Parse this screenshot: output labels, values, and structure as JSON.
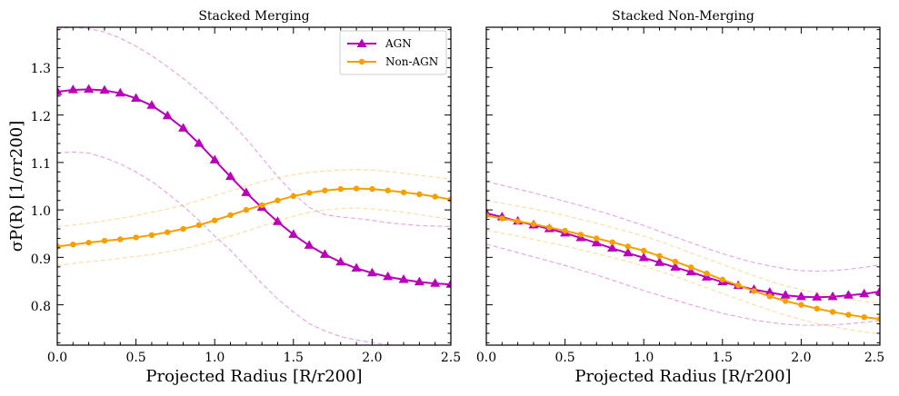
{
  "chart_data": {
    "type": "line",
    "ylabel": "σP(R) [1/σr200]",
    "ylim": [
      0.715,
      1.385
    ],
    "yticks": [
      0.8,
      0.9,
      1.0,
      1.1,
      1.2,
      1.3
    ],
    "ytick_labels": [
      "0.8",
      "0.9",
      "1.0",
      "1.1",
      "1.2",
      "1.3"
    ],
    "xticks": [
      0.0,
      0.5,
      1.0,
      1.5,
      2.0,
      2.5
    ],
    "xtick_labels": [
      "0.0",
      "0.5",
      "1.0",
      "1.5",
      "2.0",
      "2.5"
    ],
    "colors": {
      "agn": "#bb00bb",
      "non_agn": "#f5a000"
    },
    "legend": {
      "placement": "top-right",
      "entries": [
        "AGN",
        "Non-AGN"
      ]
    },
    "panels": [
      {
        "title": "Stacked Merging",
        "xlabel": "Projected Radius [R/r200]",
        "xlim": [
          0,
          2.5
        ],
        "series": [
          {
            "name": "AGN",
            "marker": "triangle",
            "x": [
              0.0,
              0.1,
              0.2,
              0.3,
              0.4,
              0.5,
              0.6,
              0.7,
              0.8,
              0.9,
              1.0,
              1.1,
              1.2,
              1.3,
              1.4,
              1.5,
              1.6,
              1.7,
              1.8,
              1.9,
              2.0,
              2.1,
              2.2,
              2.3,
              2.4,
              2.5
            ],
            "values": [
              1.249,
              1.253,
              1.254,
              1.252,
              1.246,
              1.235,
              1.22,
              1.198,
              1.172,
              1.14,
              1.105,
              1.07,
              1.036,
              1.005,
              0.975,
              0.948,
              0.925,
              0.906,
              0.89,
              0.877,
              0.867,
              0.859,
              0.853,
              0.848,
              0.845,
              0.843
            ],
            "band_upper": [
              1.382,
              1.385,
              1.382,
              1.375,
              1.362,
              1.345,
              1.325,
              1.302,
              1.277,
              1.25,
              1.22,
              1.186,
              1.15,
              1.11,
              1.07,
              1.035,
              1.005,
              0.99,
              0.985,
              0.982,
              0.978,
              0.973,
              0.97,
              0.967,
              0.966,
              0.965
            ],
            "band_lower": [
              1.12,
              1.122,
              1.12,
              1.11,
              1.097,
              1.08,
              1.06,
              1.035,
              1.008,
              0.978,
              0.945,
              0.915,
              0.88,
              0.845,
              0.812,
              0.785,
              0.76,
              0.745,
              0.733,
              0.726,
              0.72,
              0.716,
              0.713,
              0.712,
              0.712,
              0.712
            ]
          },
          {
            "name": "Non-AGN",
            "marker": "circle",
            "x": [
              0.0,
              0.1,
              0.2,
              0.3,
              0.4,
              0.5,
              0.6,
              0.7,
              0.8,
              0.9,
              1.0,
              1.1,
              1.2,
              1.3,
              1.4,
              1.5,
              1.6,
              1.7,
              1.8,
              1.9,
              2.0,
              2.1,
              2.2,
              2.3,
              2.4,
              2.5
            ],
            "values": [
              0.923,
              0.927,
              0.931,
              0.935,
              0.938,
              0.942,
              0.947,
              0.953,
              0.96,
              0.968,
              0.978,
              0.989,
              1.0,
              1.01,
              1.02,
              1.029,
              1.036,
              1.041,
              1.044,
              1.045,
              1.044,
              1.041,
              1.037,
              1.033,
              1.028,
              1.022
            ],
            "band_upper": [
              0.965,
              0.968,
              0.972,
              0.977,
              0.982,
              0.988,
              0.995,
              1.002,
              1.01,
              1.02,
              1.03,
              1.04,
              1.05,
              1.06,
              1.068,
              1.074,
              1.079,
              1.082,
              1.084,
              1.085,
              1.084,
              1.081,
              1.077,
              1.073,
              1.069,
              1.065
            ],
            "band_lower": [
              0.883,
              0.887,
              0.891,
              0.894,
              0.898,
              0.902,
              0.906,
              0.912,
              0.918,
              0.926,
              0.935,
              0.945,
              0.955,
              0.966,
              0.977,
              0.987,
              0.995,
              1.0,
              1.003,
              1.004,
              1.002,
              0.999,
              0.995,
              0.99,
              0.985,
              0.98
            ]
          }
        ]
      },
      {
        "title": "Stacked Non-Merging",
        "xlabel": "Projected Radius [R/r200]",
        "xlim": [
          0,
          2.5
        ],
        "series": [
          {
            "name": "AGN",
            "marker": "triangle",
            "x": [
              0.0,
              0.1,
              0.2,
              0.3,
              0.4,
              0.5,
              0.6,
              0.7,
              0.8,
              0.9,
              1.0,
              1.1,
              1.2,
              1.3,
              1.4,
              1.5,
              1.6,
              1.7,
              1.8,
              1.9,
              2.0,
              2.1,
              2.2,
              2.3,
              2.4,
              2.5
            ],
            "values": [
              0.993,
              0.985,
              0.976,
              0.968,
              0.96,
              0.951,
              0.941,
              0.93,
              0.919,
              0.909,
              0.899,
              0.889,
              0.879,
              0.869,
              0.858,
              0.848,
              0.84,
              0.832,
              0.826,
              0.82,
              0.817,
              0.816,
              0.817,
              0.82,
              0.823,
              0.828
            ],
            "band_upper": [
              1.06,
              1.052,
              1.044,
              1.036,
              1.027,
              1.018,
              1.009,
              0.999,
              0.989,
              0.978,
              0.967,
              0.955,
              0.943,
              0.931,
              0.919,
              0.908,
              0.898,
              0.889,
              0.882,
              0.876,
              0.872,
              0.871,
              0.872,
              0.875,
              0.879,
              0.884
            ],
            "band_lower": [
              0.928,
              0.919,
              0.91,
              0.901,
              0.892,
              0.883,
              0.873,
              0.863,
              0.852,
              0.841,
              0.83,
              0.82,
              0.81,
              0.8,
              0.791,
              0.782,
              0.775,
              0.768,
              0.763,
              0.759,
              0.757,
              0.757,
              0.758,
              0.76,
              0.763,
              0.767
            ]
          },
          {
            "name": "Non-AGN",
            "marker": "circle",
            "x": [
              0.0,
              0.1,
              0.2,
              0.3,
              0.4,
              0.5,
              0.6,
              0.7,
              0.8,
              0.9,
              1.0,
              1.1,
              1.2,
              1.3,
              1.4,
              1.5,
              1.6,
              1.7,
              1.8,
              1.9,
              2.0,
              2.1,
              2.2,
              2.3,
              2.4,
              2.5
            ],
            "values": [
              0.988,
              0.982,
              0.976,
              0.97,
              0.963,
              0.956,
              0.948,
              0.94,
              0.932,
              0.923,
              0.914,
              0.903,
              0.891,
              0.879,
              0.866,
              0.853,
              0.841,
              0.829,
              0.818,
              0.808,
              0.8,
              0.792,
              0.785,
              0.779,
              0.774,
              0.77
            ],
            "band_upper": [
              1.02,
              1.014,
              1.008,
              1.002,
              0.996,
              0.988,
              0.98,
              0.972,
              0.963,
              0.954,
              0.945,
              0.934,
              0.922,
              0.909,
              0.897,
              0.885,
              0.873,
              0.861,
              0.85,
              0.84,
              0.832,
              0.825,
              0.818,
              0.812,
              0.807,
              0.803
            ],
            "band_lower": [
              0.957,
              0.951,
              0.945,
              0.938,
              0.931,
              0.924,
              0.916,
              0.908,
              0.9,
              0.891,
              0.882,
              0.871,
              0.86,
              0.848,
              0.836,
              0.824,
              0.812,
              0.8,
              0.789,
              0.778,
              0.769,
              0.761,
              0.754,
              0.748,
              0.743,
              0.739
            ]
          }
        ]
      }
    ]
  }
}
